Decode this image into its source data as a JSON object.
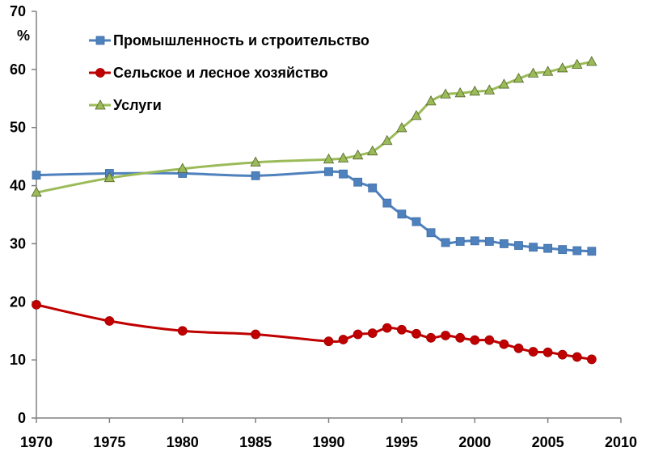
{
  "chart_data": {
    "type": "line",
    "title": "",
    "xlabel": "",
    "ylabel": "%",
    "xlim": [
      1970,
      2010
    ],
    "ylim": [
      0,
      70
    ],
    "x_ticks": [
      "1970",
      "1975",
      "1980",
      "1985",
      "1990",
      "1995",
      "2000",
      "2005",
      "2010"
    ],
    "y_ticks": [
      "0",
      "10",
      "20",
      "30",
      "40",
      "50",
      "60",
      "70"
    ],
    "grid": false,
    "legend_position": "top-left",
    "series": [
      {
        "name": "Промышленность и строительство",
        "color": "#4f81bd",
        "marker": "square",
        "x": [
          1970,
          1975,
          1980,
          1985,
          1990,
          1991,
          1992,
          1993,
          1994,
          1995,
          1996,
          1997,
          1998,
          1999,
          2000,
          2001,
          2002,
          2003,
          2004,
          2005,
          2006,
          2007,
          2008
        ],
        "values": [
          41.8,
          42.1,
          42.1,
          41.7,
          42.4,
          42.0,
          40.6,
          39.6,
          37.0,
          35.1,
          33.8,
          31.9,
          30.2,
          30.4,
          30.5,
          30.4,
          30.0,
          29.7,
          29.4,
          29.2,
          29.0,
          28.8,
          28.7
        ]
      },
      {
        "name": "Сельское и лесное хозяйство",
        "color": "#c00000",
        "marker": "circle",
        "x": [
          1970,
          1975,
          1980,
          1985,
          1990,
          1991,
          1992,
          1993,
          1994,
          1995,
          1996,
          1997,
          1998,
          1999,
          2000,
          2001,
          2002,
          2003,
          2004,
          2005,
          2006,
          2007,
          2008
        ],
        "values": [
          19.5,
          16.7,
          15.0,
          14.4,
          13.2,
          13.5,
          14.4,
          14.6,
          15.5,
          15.2,
          14.5,
          13.8,
          14.2,
          13.8,
          13.4,
          13.4,
          12.7,
          12.0,
          11.4,
          11.3,
          10.9,
          10.5,
          10.1
        ]
      },
      {
        "name": "Услуги",
        "color": "#9bbb59",
        "marker": "triangle",
        "x": [
          1970,
          1975,
          1980,
          1985,
          1990,
          1991,
          1992,
          1993,
          1994,
          1995,
          1996,
          1997,
          1998,
          1999,
          2000,
          2001,
          2002,
          2003,
          2004,
          2005,
          2006,
          2007,
          2008
        ],
        "values": [
          38.8,
          41.3,
          42.9,
          44.0,
          44.5,
          44.7,
          45.2,
          45.9,
          47.7,
          49.9,
          52.0,
          54.5,
          55.7,
          55.9,
          56.2,
          56.4,
          57.4,
          58.4,
          59.3,
          59.6,
          60.2,
          60.8,
          61.3
        ]
      }
    ]
  }
}
